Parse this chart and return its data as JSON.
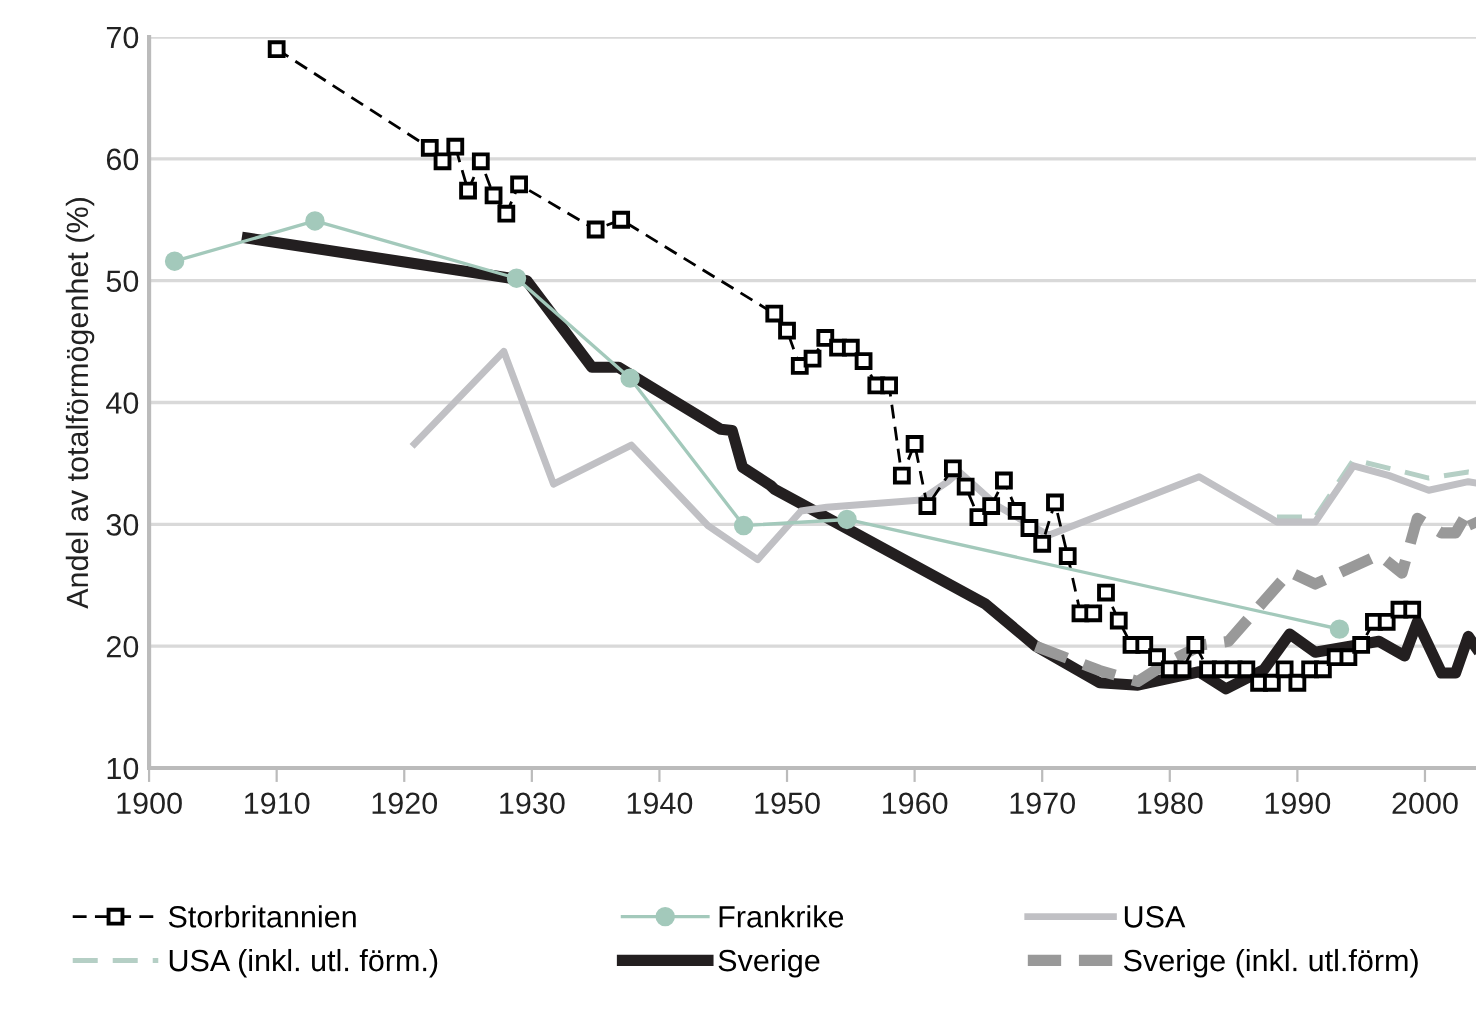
{
  "chart_data": {
    "type": "line",
    "ylabel": "Andel av totalförmögenhet (%)",
    "xlim": [
      1900,
      2004
    ],
    "xticks": [
      1900,
      1910,
      1920,
      1930,
      1940,
      1950,
      1960,
      1970,
      1980,
      1990,
      2000
    ],
    "ylim": [
      10,
      70
    ],
    "yticks": [
      10,
      20,
      30,
      40,
      50,
      60,
      70
    ],
    "grid": "y",
    "legend": "bottom",
    "series": [
      {
        "name": "Storbritannien",
        "color": "#000000",
        "line_style": "dashed",
        "marker": "square",
        "x": [
          1910,
          1922,
          1923,
          1924,
          1925,
          1926,
          1927,
          1928,
          1929,
          1935,
          1937,
          1949,
          1950,
          1951,
          1952,
          1953,
          1954,
          1955,
          1956,
          1957,
          1958,
          1959,
          1960,
          1961,
          1963,
          1964,
          1965,
          1966,
          1967,
          1968,
          1969,
          1970,
          1971,
          1972,
          1973,
          1974,
          1975,
          1976,
          1977,
          1978,
          1979,
          1980,
          1981,
          1982,
          1983,
          1984,
          1985,
          1986,
          1987,
          1988,
          1989,
          1990,
          1991,
          1992,
          1993,
          1994,
          1995,
          1996,
          1997,
          1998,
          1999
        ],
        "values": [
          69.0,
          60.9,
          59.8,
          61.0,
          57.4,
          59.8,
          57.0,
          55.5,
          57.9,
          54.2,
          55.0,
          47.3,
          45.9,
          43.0,
          43.6,
          45.3,
          44.5,
          44.5,
          43.4,
          41.4,
          41.4,
          34.0,
          36.6,
          31.5,
          34.6,
          33.1,
          30.6,
          31.5,
          33.6,
          31.1,
          29.7,
          28.4,
          31.8,
          27.4,
          22.7,
          22.7,
          24.4,
          22.1,
          20.1,
          20.1,
          19.1,
          18.1,
          18.1,
          20.1,
          18.1,
          18.1,
          18.1,
          18.1,
          17.0,
          17.0,
          18.1,
          17.0,
          18.1,
          18.1,
          19.1,
          19.1,
          20.1,
          22.0,
          22.0,
          23.0,
          23.0
        ]
      },
      {
        "name": "USA (inkl. utl. förm.)",
        "color": "#b5cfc5",
        "line_style": "dashed",
        "marker": "none",
        "x": [
          1988.4,
          1991.4,
          1994.4,
          1997.2,
          2000.3,
          2003.4,
          2004
        ],
        "values": [
          30.6,
          30.6,
          35.3,
          34.6,
          33.8,
          34.3,
          34.2
        ]
      },
      {
        "name": "Frankrike",
        "color": "#a3c9bb",
        "line_style": "solid",
        "marker": "circle",
        "x": [
          1902,
          1913,
          1928.8,
          1937.7,
          1946.6,
          1954.7,
          1993.3
        ],
        "values": [
          51.6,
          54.9,
          50.2,
          42.0,
          29.9,
          30.4,
          21.4
        ]
      },
      {
        "name": "Sverige",
        "color": "#231f20",
        "line_style": "solid",
        "marker": "none",
        "x": [
          1907.7,
          1929.6,
          1934.7,
          1936.8,
          1944.8,
          1945.7,
          1946.5,
          1948.7,
          1949,
          1965.5,
          1969.5,
          1974.5,
          1977.5,
          1982.3,
          1984.4,
          1987.4,
          1989.4,
          1991.4,
          1996.4,
          1998.4,
          1999.4,
          2001.3,
          2002.4,
          2003.4,
          2004
        ],
        "values": [
          53.5,
          50.0,
          42.9,
          42.9,
          37.8,
          37.7,
          34.7,
          33.2,
          32.9,
          23.5,
          20.0,
          17.0,
          16.8,
          17.9,
          16.5,
          18.1,
          21.0,
          19.5,
          20.4,
          19.2,
          22.0,
          17.8,
          17.8,
          20.8,
          19.9
        ]
      },
      {
        "name": "USA",
        "color": "#c0c0c4",
        "line_style": "solid",
        "marker": "none",
        "x": [
          1920.8,
          1927.8,
          1931.7,
          1937.8,
          1943.8,
          1947.7,
          1951.1,
          1953.1,
          1960.5,
          1962.6,
          1963.5,
          1966.5,
          1970.5,
          1982.3,
          1988.4,
          1991.4,
          1994.4,
          1997.2,
          2000.3,
          2003.4,
          2004
        ],
        "values": [
          36.6,
          44.2,
          33.3,
          36.5,
          29.9,
          27.1,
          31.1,
          31.4,
          32.0,
          33.5,
          34.3,
          31.5,
          29.1,
          33.9,
          30.2,
          30.2,
          34.8,
          34.0,
          32.8,
          33.5,
          33.4
        ]
      },
      {
        "name": "Sverige (inkl. utl.förm)",
        "color": "#999999",
        "line_style": "dashed",
        "marker": "none",
        "x": [
          1969.5,
          1974.5,
          1977.5,
          1979.9,
          1982.5,
          1984.6,
          1989.4,
          1991.4,
          1996.4,
          1998.2,
          1999.4,
          2001.3,
          2002.4,
          2003.4,
          2004
        ],
        "values": [
          20.0,
          18.0,
          17.1,
          18.7,
          20.1,
          20.4,
          26.1,
          25.1,
          27.5,
          26.0,
          30.5,
          29.3,
          29.3,
          31.1,
          29.7
        ]
      }
    ]
  }
}
